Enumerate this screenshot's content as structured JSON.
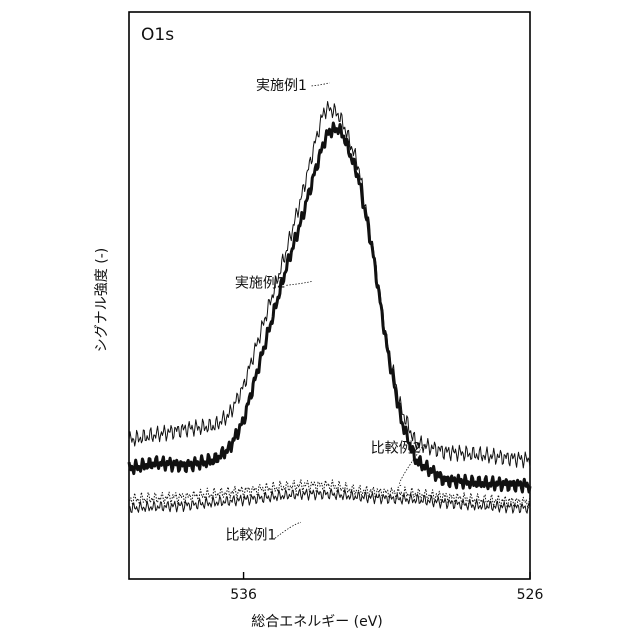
{
  "chart_data": {
    "type": "line",
    "title": "O1s",
    "xlabel": "総合エネルギー (eV)",
    "ylabel": "シグナル強度 (-)",
    "x_reversed": true,
    "xlim": [
      540,
      526
    ],
    "ylim": [
      0,
      100
    ],
    "xticks": [
      {
        "value": 536,
        "label": "536"
      },
      {
        "value": 526,
        "label": "526"
      }
    ],
    "grid": false,
    "legend": "none",
    "colors": {
      "line": "#111111",
      "frame": "#000000",
      "background": "#ffffff"
    },
    "annotations": [
      {
        "text": "実施例1",
        "x": 533.0,
        "y": 87.5,
        "series": 0
      },
      {
        "text": "実施例2",
        "x": 533.6,
        "y": 52.5,
        "series": 1
      },
      {
        "text": "比較例2",
        "x": 530.5,
        "y": 16.5,
        "series": 2
      },
      {
        "text": "比較例1",
        "x": 534.0,
        "y": 10.0,
        "series": 3
      }
    ],
    "series": [
      {
        "name": "実施例1",
        "style": "thin",
        "points": [
          [
            540.0,
            24.5
          ],
          [
            539.0,
            25.5
          ],
          [
            538.0,
            26.5
          ],
          [
            537.0,
            27.0
          ],
          [
            536.5,
            29.0
          ],
          [
            536.0,
            34.0
          ],
          [
            535.5,
            42.0
          ],
          [
            535.0,
            50.0
          ],
          [
            534.5,
            58.0
          ],
          [
            534.0,
            67.0
          ],
          [
            533.5,
            77.0
          ],
          [
            533.2,
            82.5
          ],
          [
            533.0,
            83.0
          ],
          [
            532.7,
            82.0
          ],
          [
            532.5,
            80.0
          ],
          [
            532.0,
            73.0
          ],
          [
            531.5,
            59.0
          ],
          [
            531.0,
            42.0
          ],
          [
            530.5,
            30.0
          ],
          [
            530.0,
            24.0
          ],
          [
            529.0,
            22.5
          ],
          [
            528.0,
            22.0
          ],
          [
            526.0,
            21.0
          ]
        ]
      },
      {
        "name": "実施例2",
        "style": "bold",
        "points": [
          [
            540.0,
            19.5
          ],
          [
            539.0,
            20.5
          ],
          [
            538.0,
            20.0
          ],
          [
            537.0,
            21.0
          ],
          [
            536.5,
            23.0
          ],
          [
            536.0,
            28.0
          ],
          [
            535.5,
            37.0
          ],
          [
            535.0,
            46.0
          ],
          [
            534.5,
            55.0
          ],
          [
            534.0,
            63.0
          ],
          [
            533.5,
            72.0
          ],
          [
            533.2,
            77.0
          ],
          [
            533.0,
            79.0
          ],
          [
            532.7,
            79.5
          ],
          [
            532.5,
            78.0
          ],
          [
            532.0,
            71.0
          ],
          [
            531.5,
            58.0
          ],
          [
            531.0,
            41.0
          ],
          [
            530.5,
            28.0
          ],
          [
            530.0,
            21.0
          ],
          [
            529.0,
            17.5
          ],
          [
            528.0,
            17.0
          ],
          [
            526.0,
            16.5
          ]
        ]
      },
      {
        "name": "比較例2",
        "style": "dotted",
        "points": [
          [
            540.0,
            14.0
          ],
          [
            538.0,
            14.5
          ],
          [
            536.0,
            15.5
          ],
          [
            534.0,
            16.5
          ],
          [
            533.0,
            16.5
          ],
          [
            532.0,
            15.5
          ],
          [
            530.0,
            15.0
          ],
          [
            528.0,
            14.0
          ],
          [
            526.0,
            13.5
          ]
        ]
      },
      {
        "name": "比較例1",
        "style": "thin",
        "points": [
          [
            540.0,
            12.5
          ],
          [
            538.0,
            13.0
          ],
          [
            536.0,
            14.0
          ],
          [
            534.0,
            15.0
          ],
          [
            533.0,
            15.0
          ],
          [
            532.0,
            14.5
          ],
          [
            530.0,
            14.0
          ],
          [
            528.0,
            13.0
          ],
          [
            526.0,
            12.5
          ]
        ]
      }
    ]
  }
}
